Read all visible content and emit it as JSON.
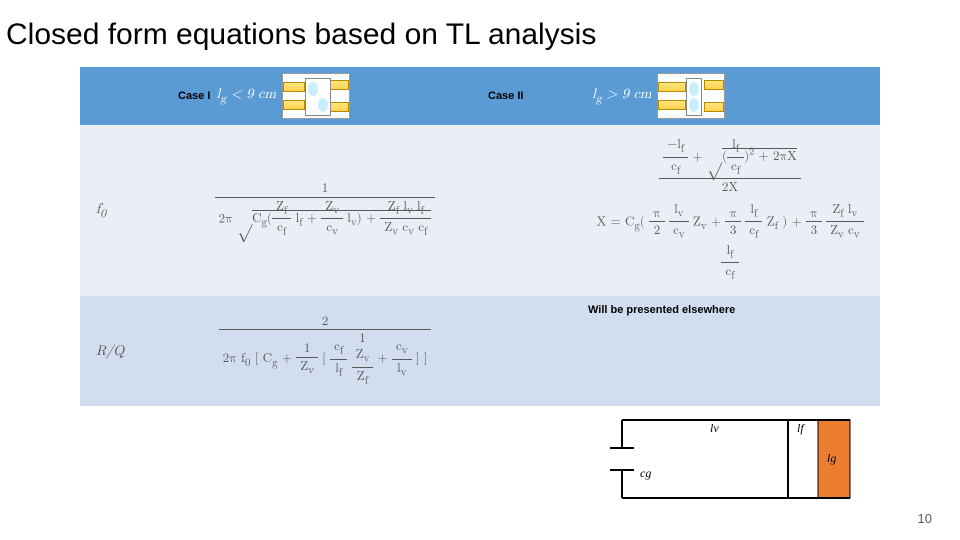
{
  "title": "Closed form equations based on TL analysis",
  "header": {
    "case1_label": "Case I",
    "case1_cond_html": "l<sub>g</sub> &lt; 9 cm",
    "case2_label": "Case II",
    "case2_cond_html": "l<sub>g</sub> &gt; 9 cm",
    "band_color": "#5b9bd5"
  },
  "rows": {
    "f0": {
      "param_html": "f<sub>0</sub>",
      "case1_formula_col": {
        "type": "formula",
        "numerator": "1",
        "denominator_html": "2&pi; <span class='sq'>&radic;</span><span style='border-top:1px solid #595959;padding-top:1px'>C<sub>g</sub>(<span class='frac'><span class='num'>Z<sub>f</sub></span><span class='den'>c<sub>f</sub></span></span> l<sub>f</sub> + <span class='frac'><span class='num'>Z<sub>v</sub></span><span class='den'>c<sub>v</sub></span></span> l<sub>v</sub>) + <span class='frac'><span class='num'>Z<sub>f</sub> l<sub>v</sub> l<sub>f</sub></span><span class='den'>Z<sub>v</sub> c<sub>v</sub> c<sub>f</sub></span></span></span>"
      },
      "case2_formula_col": {
        "type": "stacked",
        "top_html": "<span class='frac'><span class='num'>&minus;l<sub>f</sub></span><span class='den'>c<sub>f</sub></span></span> + <span class='sq'>&radic;</span><span style='border-top:1px solid #595959;padding-top:1px'>(<span class='frac'><span class='num'>l<sub>f</sub></span><span class='den'>c<sub>f</sub></span></span>)<span class='sup'>2</span> + 2&pi;X</span>",
        "top_den": "2X",
        "x_def_html": "X = C<sub>g</sub>( <span class='frac'><span class='num'>&pi;</span><span class='den'>2</span></span> <span class='frac'><span class='num'>l<sub>v</sub></span><span class='den'>c<sub>v</sub></span></span> Z<sub>v</sub> + <span class='frac'><span class='num'>&pi;</span><span class='den'>3</span></span> <span class='frac'><span class='num'>l<sub>f</sub></span><span class='den'>c<sub>f</sub></span></span> Z<sub>f</sub> ) + <span class='frac'><span class='num'>&pi;</span><span class='den'>3</span></span> <span class='frac'><span class='num'>Z<sub>f</sub> l<sub>v</sub></span><span class='den'>Z<sub>v</sub> c<sub>v</sub></span></span> <span class='frac'><span class='num'>l<sub>f</sub></span><span class='den'>c<sub>f</sub></span></span>"
      }
    },
    "rq": {
      "param_html": "R/Q",
      "case1_formula_col": {
        "type": "formula",
        "numerator": "2",
        "denominator_html": "2&pi; f<sub>0</sub> [ C<sub>g</sub> + <span class='frac'><span class='num'>1</span><span class='den'>Z<sub>v</sub></span></span> [ <span class='frac'><span class='num'>c<sub>f</sub></span><span class='den'>l<sub>f</sub></span></span> <span class='frac'><span class='num'>1<br>Z<sub>v</sub></span><span class='den'>Z<sub>f</sub></span></span> + <span class='frac'><span class='num'>c<sub>v</sub></span><span class='den'>l<sub>v</sub></span></span> ] ]"
      },
      "case2_text": "Will be presented elsewhere"
    }
  },
  "row_colors": {
    "body1": "#eaeff7",
    "body2": "#d2deef"
  },
  "circuit": {
    "stroke": "#000000",
    "fill_right": "#ed7d31",
    "labels": {
      "lv": "lv",
      "lf": "lf",
      "lg": "lg",
      "cg": "cg"
    }
  },
  "slide_number": "10"
}
